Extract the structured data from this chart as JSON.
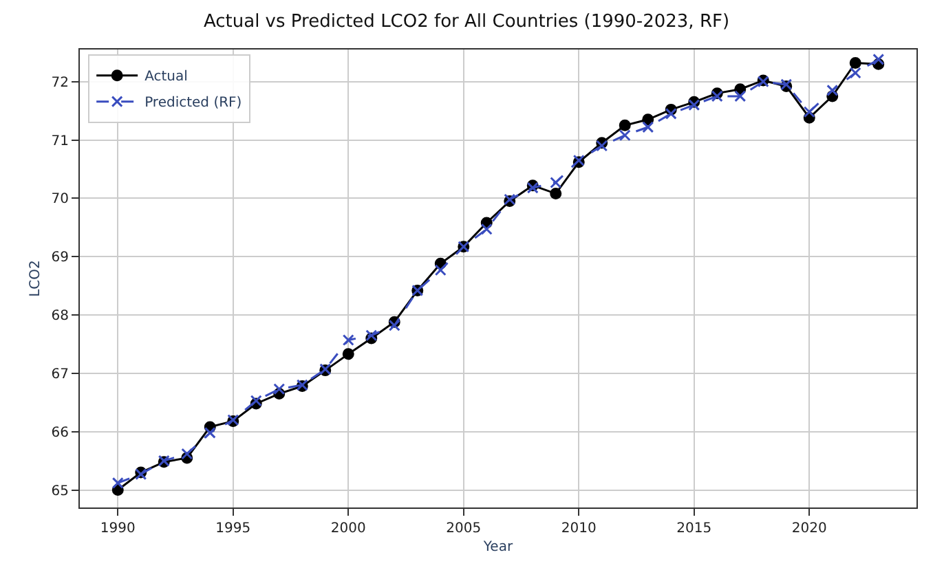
{
  "chart_data": {
    "type": "line",
    "title": "Actual vs Predicted LCO2 for All Countries (1990-2023, RF)",
    "xlabel": "Year",
    "ylabel": "LCO2",
    "x": [
      1990,
      1991,
      1992,
      1993,
      1994,
      1995,
      1996,
      1997,
      1998,
      1999,
      2000,
      2001,
      2002,
      2003,
      2004,
      2005,
      2006,
      2007,
      2008,
      2009,
      2010,
      2011,
      2012,
      2013,
      2014,
      2015,
      2016,
      2017,
      2018,
      2019,
      2020,
      2021,
      2022,
      2023
    ],
    "series": [
      {
        "name": "Actual",
        "color": "#000000",
        "marker": "circle",
        "line_style": "solid",
        "values": [
          65.0,
          65.3,
          65.48,
          65.55,
          66.08,
          66.18,
          66.48,
          66.65,
          66.78,
          67.05,
          67.33,
          67.6,
          67.88,
          68.42,
          68.88,
          69.17,
          69.58,
          69.95,
          70.22,
          70.08,
          70.62,
          70.95,
          71.25,
          71.35,
          71.52,
          71.65,
          71.8,
          71.87,
          72.02,
          71.92,
          71.38,
          71.75,
          72.32,
          72.3
        ]
      },
      {
        "name": "Predicted (RF)",
        "color": "#3a4dbf",
        "marker": "cross",
        "line_style": "dashed",
        "values": [
          65.12,
          65.27,
          65.5,
          65.62,
          65.98,
          66.2,
          66.53,
          66.73,
          66.8,
          67.07,
          67.57,
          67.65,
          67.82,
          68.42,
          68.77,
          69.17,
          69.47,
          69.98,
          70.18,
          70.27,
          70.65,
          70.9,
          71.08,
          71.22,
          71.45,
          71.6,
          71.75,
          71.75,
          72.0,
          71.95,
          71.48,
          71.85,
          72.15,
          72.38
        ]
      }
    ],
    "xlim": [
      1988.35,
      2024.65
    ],
    "xticks": [
      1990,
      1995,
      2000,
      2005,
      2010,
      2015,
      2020
    ],
    "ylim": [
      64.7,
      72.55
    ],
    "yticks": [
      65,
      66,
      67,
      68,
      69,
      70,
      71,
      72
    ],
    "grid": true,
    "legend": "top left"
  }
}
